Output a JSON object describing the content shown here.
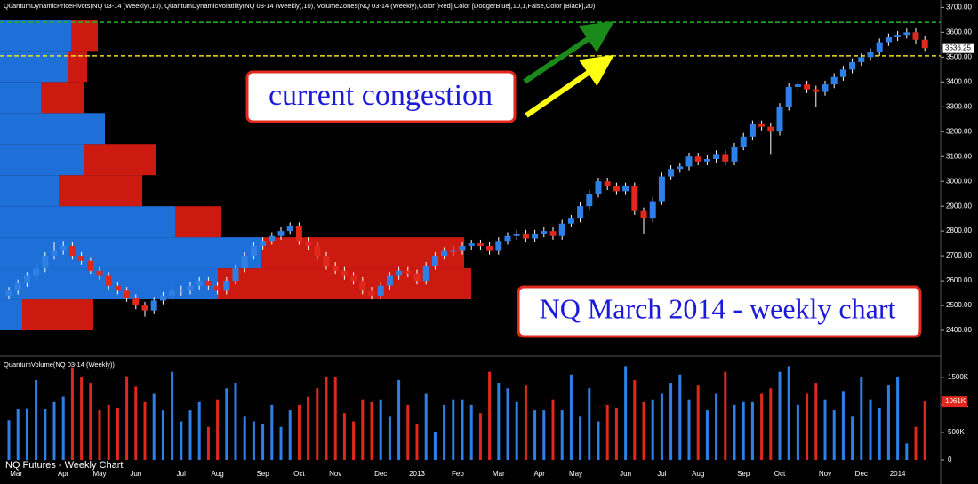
{
  "chart_data": {
    "type": "candlestick",
    "header": "QuantumDynamicPricePivots(NQ 03-14 (Weekly),10), QuantumDynamicVolatility(NQ 03-14 (Weekly),10), VolumeZones(NQ 03-14 (Weekly),Color [Red],Color [DodgerBlue],10,1,False,Color [Black],20)",
    "volume_title": "QuantumVolume(NQ 03-14 (Weekly))",
    "footer": "NQ Futures - Weekly Chart",
    "annotations": [
      "current congestion",
      "NQ March 2014 - weekly chart"
    ],
    "up_color": "#2f80e6",
    "down_color": "#e0281c",
    "ylim": [
      2300,
      3730
    ],
    "yticks": [
      {
        "value": 2400,
        "label": "2400.00"
      },
      {
        "value": 2500,
        "label": "2500.00"
      },
      {
        "value": 2600,
        "label": "2600.00"
      },
      {
        "value": 2700,
        "label": "2700.00"
      },
      {
        "value": 2800,
        "label": "2800.00"
      },
      {
        "value": 2900,
        "label": "2900.00"
      },
      {
        "value": 3000,
        "label": "3000.00"
      },
      {
        "value": 3100,
        "label": "3100.00"
      },
      {
        "value": 3200,
        "label": "3200.00"
      },
      {
        "value": 3300,
        "label": "3300.00"
      },
      {
        "value": 3400,
        "label": "3400.00"
      },
      {
        "value": 3500,
        "label": "3500.00"
      },
      {
        "value": 3600,
        "label": "3600.00"
      },
      {
        "value": 3700,
        "label": "3700.00"
      }
    ],
    "xticks": [
      {
        "value": 0.8,
        "label": "Mar"
      },
      {
        "value": 6,
        "label": "Apr"
      },
      {
        "value": 10,
        "label": "May"
      },
      {
        "value": 14,
        "label": "Jun"
      },
      {
        "value": 19,
        "label": "Jul"
      },
      {
        "value": 23,
        "label": "Aug"
      },
      {
        "value": 28,
        "label": "Sep"
      },
      {
        "value": 32,
        "label": "Oct"
      },
      {
        "value": 36,
        "label": "Nov"
      },
      {
        "value": 41,
        "label": "Dec"
      },
      {
        "value": 45,
        "label": "2013"
      },
      {
        "value": 49.5,
        "label": "Feb"
      },
      {
        "value": 54,
        "label": "Mar"
      },
      {
        "value": 58.5,
        "label": "Apr"
      },
      {
        "value": 62.5,
        "label": "May"
      },
      {
        "value": 68,
        "label": "Jun"
      },
      {
        "value": 72,
        "label": "Jul"
      },
      {
        "value": 76,
        "label": "Aug"
      },
      {
        "value": 81,
        "label": "Sep"
      },
      {
        "value": 85,
        "label": "Oct"
      },
      {
        "value": 90,
        "label": "Nov"
      },
      {
        "value": 94,
        "label": "Dec"
      },
      {
        "value": 98,
        "label": "2014"
      }
    ],
    "candles": [
      [
        2540,
        2575,
        2525,
        2560
      ],
      [
        2560,
        2605,
        2545,
        2590
      ],
      [
        2590,
        2635,
        2575,
        2620
      ],
      [
        2620,
        2665,
        2605,
        2650
      ],
      [
        2650,
        2715,
        2635,
        2700
      ],
      [
        2700,
        2755,
        2685,
        2720
      ],
      [
        2720,
        2760,
        2705,
        2740
      ],
      [
        2740,
        2755,
        2685,
        2700
      ],
      [
        2700,
        2715,
        2665,
        2680
      ],
      [
        2680,
        2695,
        2625,
        2640
      ],
      [
        2640,
        2655,
        2605,
        2620
      ],
      [
        2620,
        2635,
        2565,
        2580
      ],
      [
        2580,
        2595,
        2545,
        2560
      ],
      [
        2560,
        2575,
        2515,
        2530
      ],
      [
        2530,
        2545,
        2485,
        2500
      ],
      [
        2500,
        2515,
        2455,
        2480
      ],
      [
        2480,
        2535,
        2465,
        2520
      ],
      [
        2520,
        2555,
        2505,
        2540
      ],
      [
        2540,
        2575,
        2525,
        2560
      ],
      [
        2560,
        2580,
        2540,
        2560
      ],
      [
        2560,
        2595,
        2545,
        2580
      ],
      [
        2580,
        2615,
        2565,
        2600
      ],
      [
        2600,
        2615,
        2565,
        2580
      ],
      [
        2580,
        2595,
        2545,
        2560
      ],
      [
        2560,
        2615,
        2545,
        2600
      ],
      [
        2600,
        2665,
        2585,
        2650
      ],
      [
        2650,
        2715,
        2635,
        2700
      ],
      [
        2700,
        2755,
        2685,
        2740
      ],
      [
        2740,
        2775,
        2725,
        2760
      ],
      [
        2760,
        2795,
        2745,
        2780
      ],
      [
        2780,
        2815,
        2765,
        2800
      ],
      [
        2800,
        2835,
        2785,
        2820
      ],
      [
        2820,
        2835,
        2745,
        2760
      ],
      [
        2760,
        2775,
        2725,
        2740
      ],
      [
        2740,
        2755,
        2685,
        2700
      ],
      [
        2700,
        2715,
        2645,
        2660
      ],
      [
        2660,
        2675,
        2625,
        2640
      ],
      [
        2640,
        2655,
        2605,
        2620
      ],
      [
        2620,
        2635,
        2585,
        2600
      ],
      [
        2600,
        2615,
        2545,
        2560
      ],
      [
        2560,
        2575,
        2525,
        2540
      ],
      [
        2540,
        2595,
        2525,
        2580
      ],
      [
        2580,
        2635,
        2565,
        2620
      ],
      [
        2620,
        2655,
        2605,
        2640
      ],
      [
        2640,
        2655,
        2615,
        2630
      ],
      [
        2630,
        2645,
        2585,
        2600
      ],
      [
        2600,
        2675,
        2585,
        2660
      ],
      [
        2660,
        2715,
        2645,
        2700
      ],
      [
        2700,
        2735,
        2685,
        2720
      ],
      [
        2720,
        2740,
        2700,
        2720
      ],
      [
        2720,
        2755,
        2705,
        2740
      ],
      [
        2740,
        2765,
        2725,
        2750
      ],
      [
        2750,
        2765,
        2725,
        2740
      ],
      [
        2740,
        2755,
        2705,
        2720
      ],
      [
        2720,
        2775,
        2705,
        2760
      ],
      [
        2760,
        2795,
        2745,
        2780
      ],
      [
        2780,
        2805,
        2765,
        2790
      ],
      [
        2790,
        2805,
        2755,
        2770
      ],
      [
        2770,
        2805,
        2755,
        2790
      ],
      [
        2790,
        2815,
        2775,
        2800
      ],
      [
        2800,
        2815,
        2765,
        2780
      ],
      [
        2780,
        2845,
        2765,
        2830
      ],
      [
        2830,
        2865,
        2815,
        2850
      ],
      [
        2850,
        2915,
        2835,
        2900
      ],
      [
        2900,
        2965,
        2885,
        2950
      ],
      [
        2950,
        3015,
        2935,
        3000
      ],
      [
        3000,
        3015,
        2965,
        2980
      ],
      [
        2980,
        2995,
        2945,
        2960
      ],
      [
        2960,
        2995,
        2945,
        2980
      ],
      [
        2980,
        2995,
        2865,
        2880
      ],
      [
        2880,
        2895,
        2790,
        2850
      ],
      [
        2850,
        2935,
        2835,
        2920
      ],
      [
        2920,
        3035,
        2905,
        3020
      ],
      [
        3020,
        3065,
        3005,
        3050
      ],
      [
        3050,
        3075,
        3035,
        3060
      ],
      [
        3060,
        3115,
        3045,
        3100
      ],
      [
        3100,
        3115,
        3065,
        3080
      ],
      [
        3080,
        3105,
        3065,
        3090
      ],
      [
        3090,
        3125,
        3075,
        3110
      ],
      [
        3110,
        3125,
        3065,
        3080
      ],
      [
        3080,
        3155,
        3065,
        3140
      ],
      [
        3140,
        3195,
        3125,
        3180
      ],
      [
        3180,
        3245,
        3165,
        3230
      ],
      [
        3230,
        3245,
        3205,
        3220
      ],
      [
        3220,
        3235,
        3110,
        3200
      ],
      [
        3200,
        3315,
        3185,
        3300
      ],
      [
        3300,
        3395,
        3285,
        3380
      ],
      [
        3380,
        3405,
        3365,
        3390
      ],
      [
        3390,
        3405,
        3355,
        3370
      ],
      [
        3370,
        3385,
        3300,
        3360
      ],
      [
        3360,
        3405,
        3345,
        3390
      ],
      [
        3390,
        3435,
        3375,
        3420
      ],
      [
        3420,
        3465,
        3405,
        3450
      ],
      [
        3450,
        3495,
        3435,
        3480
      ],
      [
        3480,
        3515,
        3465,
        3500
      ],
      [
        3500,
        3535,
        3485,
        3520
      ],
      [
        3520,
        3575,
        3505,
        3560
      ],
      [
        3560,
        3595,
        3545,
        3580
      ],
      [
        3580,
        3605,
        3565,
        3590
      ],
      [
        3590,
        3615,
        3575,
        3600
      ],
      [
        3600,
        3615,
        3555,
        3570
      ],
      [
        3570,
        3585,
        3525,
        3536.25
      ]
    ],
    "last_price": 3536.25,
    "volumes": [
      720,
      920,
      940,
      1450,
      920,
      1050,
      1150,
      1680,
      1500,
      1400,
      900,
      1000,
      950,
      1520,
      1330,
      1050,
      1200,
      900,
      1600,
      700,
      900,
      1050,
      600,
      1100,
      1300,
      1400,
      800,
      700,
      650,
      1000,
      600,
      900,
      1000,
      1150,
      1300,
      1500,
      1500,
      850,
      700,
      1100,
      1050,
      1100,
      800,
      1450,
      1000,
      650,
      1200,
      500,
      1000,
      1100,
      1100,
      1000,
      850,
      1600,
      1400,
      1300,
      1050,
      1350,
      900,
      900,
      1100,
      900,
      1550,
      800,
      1300,
      700,
      1000,
      950,
      1700,
      1450,
      1050,
      1100,
      1200,
      1400,
      1550,
      1100,
      1350,
      900,
      1200,
      1600,
      1000,
      1050,
      1050,
      1200,
      1300,
      1600,
      1700,
      1000,
      1200,
      1400,
      1100,
      900,
      1250,
      800,
      1500,
      1100,
      950,
      1350,
      1500,
      300,
      600,
      1061
    ],
    "last_volume_label": "1061K",
    "vlim": [
      0,
      1900
    ],
    "vticks": [
      {
        "value": 0,
        "label": "0"
      },
      {
        "value": 500,
        "label": "500K"
      },
      {
        "value": 1000,
        "label": "1000K"
      },
      {
        "value": 1500,
        "label": "1500K"
      }
    ],
    "volume_zones": [
      {
        "low": 2400,
        "high": 2525,
        "blue": 25,
        "red": 80
      },
      {
        "low": 2525,
        "high": 2650,
        "blue": 245,
        "red": 285
      },
      {
        "low": 2650,
        "high": 2775,
        "blue": 293,
        "red": 229
      },
      {
        "low": 2775,
        "high": 2900,
        "blue": 197,
        "red": 52
      },
      {
        "low": 2900,
        "high": 3025,
        "blue": 66,
        "red": 94
      },
      {
        "low": 3025,
        "high": 3150,
        "blue": 95,
        "red": 80
      },
      {
        "low": 3150,
        "high": 3275,
        "blue": 118,
        "red": 0
      },
      {
        "low": 3275,
        "high": 3400,
        "blue": 46,
        "red": 48
      },
      {
        "low": 3400,
        "high": 3525,
        "blue": 76,
        "red": 22
      },
      {
        "low": 3525,
        "high": 3650,
        "blue": 80,
        "red": 30
      }
    ],
    "zone_blue": "#1f6fd8",
    "zone_red": "#cc1a10",
    "reference_lines": [
      {
        "value": 3640,
        "color": "#22b822"
      },
      {
        "value": 3505,
        "color": "#f0e020"
      }
    ]
  }
}
